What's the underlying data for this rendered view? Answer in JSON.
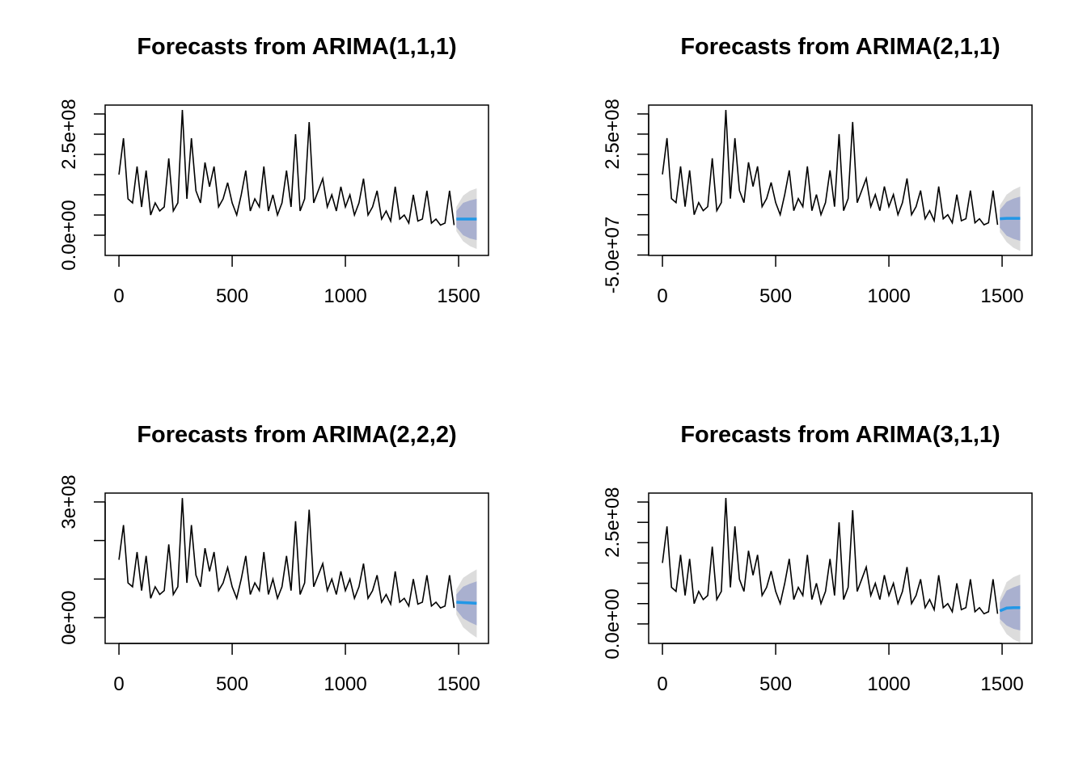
{
  "chart_data": [
    {
      "type": "line",
      "title": "Forecasts from ARIMA(1,1,1)",
      "x": [
        0,
        20,
        40,
        60,
        80,
        100,
        120,
        140,
        160,
        180,
        200,
        220,
        240,
        260,
        280,
        300,
        320,
        340,
        360,
        380,
        400,
        420,
        440,
        460,
        480,
        500,
        520,
        540,
        560,
        580,
        600,
        620,
        640,
        660,
        680,
        700,
        720,
        740,
        760,
        780,
        800,
        820,
        840,
        860,
        880,
        900,
        920,
        940,
        960,
        980,
        1000,
        1020,
        1040,
        1060,
        1080,
        1100,
        1120,
        1140,
        1160,
        1180,
        1200,
        1220,
        1240,
        1260,
        1280,
        1300,
        1320,
        1340,
        1360,
        1380,
        1400,
        1420,
        1440,
        1460,
        1480
      ],
      "series": [
        {
          "color": "#000000",
          "values": [
            150000000.0,
            240000000.0,
            90000000.0,
            80000000.0,
            170000000.0,
            70000000.0,
            160000000.0,
            50000000.0,
            80000000.0,
            60000000.0,
            70000000.0,
            190000000.0,
            60000000.0,
            80000000.0,
            310000000.0,
            90000000.0,
            240000000.0,
            110000000.0,
            80000000.0,
            180000000.0,
            120000000.0,
            170000000.0,
            70000000.0,
            90000000.0,
            130000000.0,
            80000000.0,
            50000000.0,
            100000000.0,
            160000000.0,
            60000000.0,
            90000000.0,
            70000000.0,
            170000000.0,
            60000000.0,
            100000000.0,
            50000000.0,
            80000000.0,
            160000000.0,
            70000000.0,
            250000000.0,
            60000000.0,
            90000000.0,
            280000000.0,
            80000000.0,
            110000000.0,
            140000000.0,
            70000000.0,
            100000000.0,
            60000000.0,
            120000000.0,
            70000000.0,
            100000000.0,
            50000000.0,
            80000000.0,
            140000000.0,
            50000000.0,
            70000000.0,
            110000000.0,
            40000000.0,
            60000000.0,
            35000000.0,
            120000000.0,
            40000000.0,
            50000000.0,
            30000000.0,
            100000000.0,
            35000000.0,
            40000000.0,
            110000000.0,
            30000000.0,
            40000000.0,
            25000000.0,
            30000000.0,
            110000000.0,
            25000000.0
          ]
        }
      ],
      "forecast": {
        "x": [
          1490,
          1520,
          1550,
          1580
        ],
        "mean": [
          40000000.0,
          40000000.0,
          40000000.0,
          40000000.0
        ],
        "lower80": [
          20000000.0,
          0,
          -8000000.0,
          -12000000.0
        ],
        "upper80": [
          60000000.0,
          80000000.0,
          86000000.0,
          90000000.0
        ],
        "lower95": [
          10000000.0,
          -15000000.0,
          -27000000.0,
          -34000000.0
        ],
        "upper95": [
          70000000.0,
          98000000.0,
          110000000.0,
          116000000.0
        ],
        "mean_color": "#2297e6",
        "band80_color": "#a9b0cf",
        "band95_color": "#dcdcdc"
      },
      "xlim": [
        -61,
        1632
      ],
      "xticks": [
        0,
        500,
        1000,
        1500
      ],
      "ylim": [
        -50000000.0,
        322000000.0
      ],
      "yticks": [
        {
          "value": 0,
          "label": "0.0e+00"
        },
        {
          "value": 250000000.0,
          "label": "2.5e+08"
        }
      ],
      "yticks_unlabeled": [
        50000000.0,
        100000000.0,
        150000000.0,
        200000000.0,
        300000000.0
      ]
    },
    {
      "type": "line",
      "title": "Forecasts from ARIMA(2,1,1)",
      "x": [
        0,
        20,
        40,
        60,
        80,
        100,
        120,
        140,
        160,
        180,
        200,
        220,
        240,
        260,
        280,
        300,
        320,
        340,
        360,
        380,
        400,
        420,
        440,
        460,
        480,
        500,
        520,
        540,
        560,
        580,
        600,
        620,
        640,
        660,
        680,
        700,
        720,
        740,
        760,
        780,
        800,
        820,
        840,
        860,
        880,
        900,
        920,
        940,
        960,
        980,
        1000,
        1020,
        1040,
        1060,
        1080,
        1100,
        1120,
        1140,
        1160,
        1180,
        1200,
        1220,
        1240,
        1260,
        1280,
        1300,
        1320,
        1340,
        1360,
        1380,
        1400,
        1420,
        1440,
        1460,
        1480
      ],
      "series": [
        {
          "color": "#000000",
          "values": [
            150000000.0,
            240000000.0,
            90000000.0,
            80000000.0,
            170000000.0,
            70000000.0,
            160000000.0,
            50000000.0,
            80000000.0,
            60000000.0,
            70000000.0,
            190000000.0,
            60000000.0,
            80000000.0,
            310000000.0,
            90000000.0,
            240000000.0,
            110000000.0,
            80000000.0,
            180000000.0,
            120000000.0,
            170000000.0,
            70000000.0,
            90000000.0,
            130000000.0,
            80000000.0,
            50000000.0,
            100000000.0,
            160000000.0,
            60000000.0,
            90000000.0,
            70000000.0,
            170000000.0,
            60000000.0,
            100000000.0,
            50000000.0,
            80000000.0,
            160000000.0,
            70000000.0,
            250000000.0,
            60000000.0,
            90000000.0,
            280000000.0,
            80000000.0,
            110000000.0,
            140000000.0,
            70000000.0,
            100000000.0,
            60000000.0,
            120000000.0,
            70000000.0,
            100000000.0,
            50000000.0,
            80000000.0,
            140000000.0,
            50000000.0,
            70000000.0,
            110000000.0,
            40000000.0,
            60000000.0,
            35000000.0,
            120000000.0,
            40000000.0,
            50000000.0,
            30000000.0,
            100000000.0,
            35000000.0,
            40000000.0,
            110000000.0,
            30000000.0,
            40000000.0,
            25000000.0,
            30000000.0,
            110000000.0,
            25000000.0
          ]
        }
      ],
      "forecast": {
        "x": [
          1490,
          1520,
          1550,
          1580
        ],
        "mean": [
          40000000.0,
          41000000.0,
          41000000.0,
          41000000.0
        ],
        "lower80": [
          18000000.0,
          -2000000.0,
          -10000000.0,
          -15000000.0
        ],
        "upper80": [
          62000000.0,
          82000000.0,
          90000000.0,
          95000000.0
        ],
        "lower95": [
          7000000.0,
          -18000000.0,
          -32000000.0,
          -40000000.0
        ],
        "upper95": [
          73000000.0,
          100000000.0,
          112000000.0,
          120000000.0
        ],
        "mean_color": "#2297e6",
        "band80_color": "#a9b0cf",
        "band95_color": "#dcdcdc"
      },
      "xlim": [
        -61,
        1632
      ],
      "xticks": [
        0,
        500,
        1000,
        1500
      ],
      "ylim": [
        -51000000.0,
        322000000.0
      ],
      "yticks": [
        {
          "value": -50000000.0,
          "label": "-5.0e+07"
        },
        {
          "value": 250000000.0,
          "label": "2.5e+08"
        }
      ],
      "yticks_unlabeled": [
        0,
        50000000.0,
        100000000.0,
        150000000.0,
        200000000.0,
        300000000.0
      ]
    },
    {
      "type": "line",
      "title": "Forecasts from ARIMA(2,2,2)",
      "x": [
        0,
        20,
        40,
        60,
        80,
        100,
        120,
        140,
        160,
        180,
        200,
        220,
        240,
        260,
        280,
        300,
        320,
        340,
        360,
        380,
        400,
        420,
        440,
        460,
        480,
        500,
        520,
        540,
        560,
        580,
        600,
        620,
        640,
        660,
        680,
        700,
        720,
        740,
        760,
        780,
        800,
        820,
        840,
        860,
        880,
        900,
        920,
        940,
        960,
        980,
        1000,
        1020,
        1040,
        1060,
        1080,
        1100,
        1120,
        1140,
        1160,
        1180,
        1200,
        1220,
        1240,
        1260,
        1280,
        1300,
        1320,
        1340,
        1360,
        1380,
        1400,
        1420,
        1440,
        1460,
        1480
      ],
      "series": [
        {
          "color": "#000000",
          "values": [
            150000000.0,
            240000000.0,
            90000000.0,
            80000000.0,
            170000000.0,
            70000000.0,
            160000000.0,
            50000000.0,
            80000000.0,
            60000000.0,
            70000000.0,
            190000000.0,
            60000000.0,
            80000000.0,
            310000000.0,
            90000000.0,
            240000000.0,
            110000000.0,
            80000000.0,
            180000000.0,
            120000000.0,
            170000000.0,
            70000000.0,
            90000000.0,
            130000000.0,
            80000000.0,
            50000000.0,
            100000000.0,
            160000000.0,
            60000000.0,
            90000000.0,
            70000000.0,
            170000000.0,
            60000000.0,
            100000000.0,
            50000000.0,
            80000000.0,
            160000000.0,
            70000000.0,
            250000000.0,
            60000000.0,
            90000000.0,
            280000000.0,
            80000000.0,
            110000000.0,
            140000000.0,
            70000000.0,
            100000000.0,
            60000000.0,
            120000000.0,
            70000000.0,
            100000000.0,
            50000000.0,
            80000000.0,
            140000000.0,
            50000000.0,
            70000000.0,
            110000000.0,
            40000000.0,
            60000000.0,
            35000000.0,
            120000000.0,
            40000000.0,
            50000000.0,
            30000000.0,
            100000000.0,
            35000000.0,
            40000000.0,
            110000000.0,
            30000000.0,
            40000000.0,
            25000000.0,
            30000000.0,
            110000000.0,
            25000000.0
          ]
        }
      ],
      "forecast": {
        "x": [
          1490,
          1520,
          1550,
          1580
        ],
        "mean": [
          40000000.0,
          39000000.0,
          38000000.0,
          37000000.0
        ],
        "lower80": [
          20000000.0,
          -2000000.0,
          -12000000.0,
          -20000000.0
        ],
        "upper80": [
          60000000.0,
          80000000.0,
          88000000.0,
          94000000.0
        ],
        "lower95": [
          8000000.0,
          -25000000.0,
          -40000000.0,
          -52000000.0
        ],
        "upper95": [
          73000000.0,
          103000000.0,
          115000000.0,
          125000000.0
        ],
        "mean_color": "#2297e6",
        "band80_color": "#a9b0cf",
        "band95_color": "#dcdcdc"
      },
      "xlim": [
        -61,
        1632
      ],
      "xticks": [
        0,
        500,
        1000,
        1500
      ],
      "ylim": [
        -67000000.0,
        323000000.0
      ],
      "yticks": [
        {
          "value": 0,
          "label": "0e+00"
        },
        {
          "value": 300000000.0,
          "label": "3e+08"
        }
      ],
      "yticks_unlabeled": [
        100000000.0,
        200000000.0
      ]
    },
    {
      "type": "line",
      "title": "Forecasts from ARIMA(3,1,1)",
      "x": [
        0,
        20,
        40,
        60,
        80,
        100,
        120,
        140,
        160,
        180,
        200,
        220,
        240,
        260,
        280,
        300,
        320,
        340,
        360,
        380,
        400,
        420,
        440,
        460,
        480,
        500,
        520,
        540,
        560,
        580,
        600,
        620,
        640,
        660,
        680,
        700,
        720,
        740,
        760,
        780,
        800,
        820,
        840,
        860,
        880,
        900,
        920,
        940,
        960,
        980,
        1000,
        1020,
        1040,
        1060,
        1080,
        1100,
        1120,
        1140,
        1160,
        1180,
        1200,
        1220,
        1240,
        1260,
        1280,
        1300,
        1320,
        1340,
        1360,
        1380,
        1400,
        1420,
        1440,
        1460,
        1480
      ],
      "series": [
        {
          "color": "#000000",
          "values": [
            150000000.0,
            240000000.0,
            90000000.0,
            80000000.0,
            170000000.0,
            70000000.0,
            160000000.0,
            50000000.0,
            80000000.0,
            60000000.0,
            70000000.0,
            190000000.0,
            60000000.0,
            80000000.0,
            310000000.0,
            90000000.0,
            240000000.0,
            110000000.0,
            80000000.0,
            180000000.0,
            120000000.0,
            170000000.0,
            70000000.0,
            90000000.0,
            130000000.0,
            80000000.0,
            50000000.0,
            100000000.0,
            160000000.0,
            60000000.0,
            90000000.0,
            70000000.0,
            170000000.0,
            60000000.0,
            100000000.0,
            50000000.0,
            80000000.0,
            160000000.0,
            70000000.0,
            250000000.0,
            60000000.0,
            90000000.0,
            280000000.0,
            80000000.0,
            110000000.0,
            140000000.0,
            70000000.0,
            100000000.0,
            60000000.0,
            120000000.0,
            70000000.0,
            100000000.0,
            50000000.0,
            80000000.0,
            140000000.0,
            50000000.0,
            70000000.0,
            110000000.0,
            40000000.0,
            60000000.0,
            35000000.0,
            120000000.0,
            40000000.0,
            50000000.0,
            30000000.0,
            100000000.0,
            35000000.0,
            40000000.0,
            110000000.0,
            30000000.0,
            40000000.0,
            25000000.0,
            30000000.0,
            110000000.0,
            25000000.0
          ]
        }
      ],
      "forecast": {
        "x": [
          1490,
          1520,
          1550,
          1580
        ],
        "mean": [
          32000000.0,
          39000000.0,
          40000000.0,
          40000000.0
        ],
        "lower80": [
          12000000.0,
          -4000000.0,
          -12000000.0,
          -16000000.0
        ],
        "upper80": [
          52000000.0,
          82000000.0,
          90000000.0,
          96000000.0
        ],
        "lower95": [
          2000000.0,
          -25000000.0,
          -38000000.0,
          -46000000.0
        ],
        "upper95": [
          63000000.0,
          103000000.0,
          115000000.0,
          122000000.0
        ],
        "mean_color": "#2297e6",
        "band80_color": "#a9b0cf",
        "band95_color": "#dcdcdc"
      },
      "xlim": [
        -61,
        1632
      ],
      "xticks": [
        0,
        500,
        1000,
        1500
      ],
      "ylim": [
        -48000000.0,
        322000000.0
      ],
      "yticks": [
        {
          "value": 0,
          "label": "0.0e+00"
        },
        {
          "value": 250000000.0,
          "label": "2.5e+08"
        }
      ],
      "yticks_unlabeled": [
        50000000.0,
        100000000.0,
        150000000.0,
        200000000.0,
        300000000.0
      ]
    }
  ]
}
